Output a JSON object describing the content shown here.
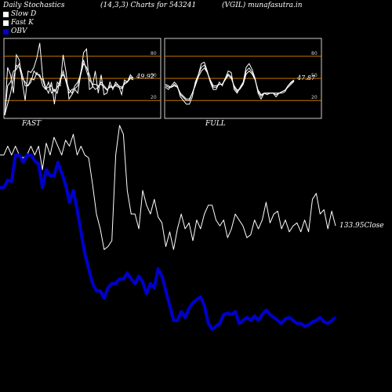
{
  "header": {
    "left": "Daily Stochastics",
    "params": "(14,3,3) Charts for 543241",
    "right": "(VGIL) munafasutra.in"
  },
  "legend": [
    {
      "label": "Slow  D",
      "color": "#ffffff"
    },
    {
      "label": "Fast K",
      "color": "#ffffff"
    },
    {
      "label": "OBV",
      "color": "#0000cc"
    }
  ],
  "close_label": "133.95Close",
  "chart_data": [
    {
      "type": "line",
      "title": "FAST",
      "ylim": [
        0,
        100
      ],
      "hlines": [
        80,
        50,
        20
      ],
      "tick_labels": [
        "80",
        "50",
        "20"
      ],
      "last_value_label": "49.92",
      "series": [
        {
          "values": [
            0,
            65,
            55,
            30,
            82,
            75,
            45,
            20,
            60,
            58,
            65,
            78,
            98,
            52,
            38,
            30,
            45,
            15,
            45,
            40,
            82,
            58,
            22,
            28,
            35,
            30,
            55,
            85,
            90,
            35,
            38,
            60,
            30,
            55,
            28,
            30,
            45,
            35,
            45,
            40,
            28,
            48,
            45,
            55,
            50
          ]
        },
        {
          "values": [
            0,
            40,
            45,
            60,
            62,
            70,
            55,
            40,
            40,
            45,
            60,
            55,
            55,
            40,
            35,
            45,
            30,
            35,
            30,
            50,
            55,
            48,
            35,
            30,
            40,
            45,
            55,
            70,
            65,
            55,
            40,
            35,
            38,
            45,
            40,
            35,
            38,
            38,
            42,
            40,
            38,
            42,
            45,
            50,
            48
          ]
        },
        {
          "values": [
            0,
            15,
            30,
            50,
            68,
            65,
            50,
            45,
            40,
            50,
            48,
            58,
            52,
            48,
            36,
            38,
            40,
            32,
            38,
            45,
            60,
            45,
            30,
            35,
            36,
            40,
            58,
            75,
            60,
            48,
            42,
            42,
            40,
            42,
            38,
            34,
            40,
            38,
            40,
            38,
            36,
            44,
            46,
            52,
            50
          ]
        }
      ]
    },
    {
      "type": "line",
      "title": "FULL",
      "ylim": [
        0,
        100
      ],
      "hlines": [
        80,
        50,
        20
      ],
      "tick_labels": [
        "80",
        "50",
        "20"
      ],
      "last_value_label": "47.87",
      "series": [
        {
          "values": [
            38,
            35,
            40,
            45,
            40,
            25,
            20,
            15,
            15,
            25,
            45,
            55,
            70,
            72,
            60,
            45,
            35,
            35,
            45,
            40,
            50,
            60,
            58,
            35,
            30,
            38,
            45,
            65,
            70,
            62,
            50,
            30,
            22,
            30,
            28,
            30,
            30,
            25,
            30,
            30,
            32,
            40,
            45,
            48
          ]
        },
        {
          "values": [
            40,
            38,
            38,
            42,
            38,
            28,
            24,
            20,
            20,
            30,
            42,
            55,
            65,
            68,
            58,
            46,
            38,
            38,
            42,
            42,
            50,
            56,
            52,
            38,
            32,
            36,
            44,
            60,
            64,
            58,
            48,
            32,
            26,
            30,
            30,
            30,
            30,
            28,
            30,
            32,
            34,
            40,
            44,
            47
          ]
        },
        {
          "values": [
            42,
            40,
            38,
            40,
            38,
            30,
            26,
            22,
            22,
            30,
            40,
            52,
            60,
            64,
            58,
            48,
            40,
            40,
            42,
            42,
            48,
            54,
            50,
            40,
            34,
            36,
            42,
            56,
            60,
            56,
            48,
            34,
            28,
            30,
            30,
            30,
            30,
            30,
            30,
            32,
            34,
            38,
            42,
            46
          ]
        }
      ]
    },
    {
      "type": "line",
      "title": "",
      "series": [
        {
          "name": "Price",
          "values": [
            262,
            262,
            268,
            262,
            268,
            262,
            260,
            262,
            268,
            262,
            268,
            252,
            270,
            262,
            274,
            268,
            262,
            272,
            268,
            276,
            262,
            268,
            262,
            260,
            242,
            222,
            212,
            198,
            200,
            204,
            262,
            282,
            276,
            238,
            222,
            222,
            212,
            238,
            228,
            222,
            232,
            220,
            216,
            200,
            210,
            198,
            212,
            222,
            212,
            216,
            204,
            218,
            212,
            222,
            228,
            228,
            218,
            214,
            218,
            206,
            212,
            222,
            218,
            214,
            206,
            208,
            218,
            212,
            218,
            230,
            216,
            222,
            224,
            212,
            218,
            210,
            214,
            216,
            210,
            218,
            210,
            232,
            236,
            222,
            225,
            212,
            224,
            214
          ]
        },
        {
          "name": "OBV",
          "values": [
            240,
            240,
            245,
            244,
            262,
            262,
            257,
            262,
            262,
            258,
            256,
            240,
            252,
            248,
            248,
            257,
            250,
            242,
            230,
            238,
            225,
            210,
            195,
            185,
            175,
            170,
            170,
            165,
            172,
            175,
            175,
            178,
            178,
            182,
            178,
            175,
            180,
            176,
            168,
            175,
            172,
            185,
            180,
            170,
            160,
            150,
            150,
            156,
            152,
            158,
            162,
            164,
            166,
            160,
            148,
            144,
            146,
            148,
            154,
            155,
            154,
            156,
            148,
            150,
            152,
            150,
            153,
            150,
            154,
            157,
            154,
            152,
            150,
            148,
            151,
            152,
            150,
            148,
            148,
            146,
            147,
            149,
            150,
            152,
            149,
            148,
            150,
            152
          ]
        }
      ]
    }
  ]
}
